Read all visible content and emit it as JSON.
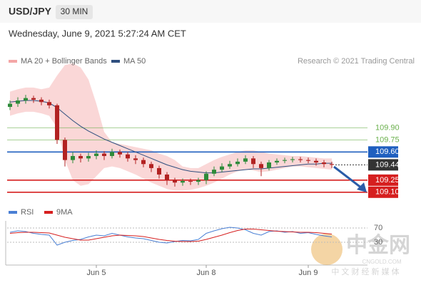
{
  "header": {
    "symbol": "USD/JPY",
    "timeframe": "30 MIN",
    "date": "Wednesday, June 9, 2021 5:27:24 AM CET",
    "credit": "Research © 2021 Trading Central"
  },
  "watermark": {
    "logo": "中金网",
    "site": "CNGOLD.COM",
    "slogan": "中 文 财 经 新 媒 体"
  },
  "chart_data": [
    {
      "type": "candlestick",
      "ylim": [
        108.93,
        110.78
      ],
      "up_color": "#2e8b3a",
      "down_color": "#b22222",
      "open": [
        110.16,
        110.2,
        110.24,
        110.27,
        110.25,
        110.22,
        110.18,
        109.75,
        109.5,
        109.55,
        109.52,
        109.55,
        109.58,
        109.55,
        109.6,
        109.57,
        109.52,
        109.5,
        109.45,
        109.4,
        109.32,
        109.25,
        109.22,
        109.24,
        109.23,
        109.25,
        109.33,
        109.38,
        109.42,
        109.45,
        109.48,
        109.52,
        109.45,
        109.4,
        109.47,
        109.49,
        109.5,
        109.51,
        109.5,
        109.49,
        109.47,
        109.45
      ],
      "high": [
        110.24,
        110.28,
        110.31,
        110.3,
        110.28,
        110.25,
        110.2,
        109.78,
        109.6,
        109.58,
        109.59,
        109.62,
        109.61,
        109.64,
        109.63,
        109.6,
        109.56,
        109.53,
        109.48,
        109.43,
        109.35,
        109.28,
        109.27,
        109.27,
        109.28,
        109.36,
        109.42,
        109.46,
        109.49,
        109.52,
        109.56,
        109.55,
        109.48,
        109.5,
        109.52,
        109.53,
        109.54,
        109.54,
        109.53,
        109.52,
        109.5,
        109.48
      ],
      "low": [
        110.12,
        110.16,
        110.2,
        110.21,
        110.18,
        110.14,
        109.7,
        109.42,
        109.46,
        109.47,
        109.48,
        109.51,
        109.5,
        109.52,
        109.53,
        109.48,
        109.45,
        109.41,
        109.35,
        109.27,
        109.19,
        109.17,
        109.18,
        109.19,
        109.19,
        109.2,
        109.3,
        109.35,
        109.39,
        109.42,
        109.45,
        109.4,
        109.3,
        109.37,
        109.44,
        109.46,
        109.47,
        109.47,
        109.46,
        109.43,
        109.41,
        109.4
      ],
      "close": [
        110.2,
        110.24,
        110.27,
        110.25,
        110.22,
        110.18,
        109.75,
        109.5,
        109.55,
        109.52,
        109.55,
        109.58,
        109.55,
        109.6,
        109.57,
        109.52,
        109.5,
        109.45,
        109.4,
        109.32,
        109.25,
        109.22,
        109.24,
        109.23,
        109.25,
        109.33,
        109.38,
        109.42,
        109.45,
        109.48,
        109.52,
        109.45,
        109.4,
        109.47,
        109.49,
        109.5,
        109.51,
        109.5,
        109.49,
        109.47,
        109.45,
        109.44
      ],
      "series": [
        {
          "name": "MA 20 + Bollinger Bands",
          "color": "#f4a6a6",
          "upper": [
            110.35,
            110.38,
            110.4,
            110.4,
            110.38,
            110.4,
            110.55,
            110.68,
            110.7,
            110.65,
            110.5,
            110.2,
            109.85,
            109.72,
            109.7,
            109.68,
            109.66,
            109.64,
            109.62,
            109.58,
            109.55,
            109.5,
            109.42,
            109.4,
            109.4,
            109.45,
            109.5,
            109.54,
            109.57,
            109.6,
            109.62,
            109.62,
            109.6,
            109.58,
            109.57,
            109.56,
            109.55,
            109.55,
            109.54,
            109.53,
            109.52,
            109.52
          ],
          "lower": [
            110.05,
            110.08,
            110.1,
            110.1,
            110.08,
            110.05,
            109.9,
            109.5,
            109.25,
            109.18,
            109.2,
            109.3,
            109.4,
            109.42,
            109.4,
            109.36,
            109.32,
            109.27,
            109.22,
            109.18,
            109.14,
            109.12,
            109.12,
            109.13,
            109.15,
            109.18,
            109.22,
            109.27,
            109.32,
            109.36,
            109.38,
            109.37,
            109.35,
            109.36,
            109.38,
            109.4,
            109.42,
            109.42,
            109.41,
            109.4,
            109.39,
            109.38
          ]
        },
        {
          "name": "MA 50",
          "color": "#2f4f7f",
          "values": [
            110.22,
            110.23,
            110.24,
            110.24,
            110.23,
            110.21,
            110.15,
            110.07,
            109.99,
            109.92,
            109.86,
            109.81,
            109.76,
            109.72,
            109.68,
            109.64,
            109.6,
            109.56,
            109.52,
            109.48,
            109.44,
            109.41,
            109.38,
            109.36,
            109.35,
            109.34,
            109.34,
            109.35,
            109.36,
            109.37,
            109.38,
            109.39,
            109.39,
            109.4,
            109.41,
            109.42,
            109.43,
            109.44,
            109.45,
            109.45,
            109.46,
            109.46
          ]
        }
      ],
      "levels": [
        {
          "value": 109.9,
          "label": "109.90",
          "color": "#6ab04c",
          "boxed": false
        },
        {
          "value": 109.75,
          "label": "109.75",
          "color": "#6ab04c",
          "boxed": false
        },
        {
          "value": 109.6,
          "label": "109.60",
          "color": "#1f5fbf",
          "boxed": true
        },
        {
          "value": 109.44,
          "label": "109.44",
          "color": "#333333",
          "boxed": true,
          "dotted": true
        },
        {
          "value": 109.25,
          "label": "109.25",
          "color": "#d61f1f",
          "boxed": true
        },
        {
          "value": 109.1,
          "label": "109.10",
          "color": "#d61f1f",
          "boxed": true
        }
      ]
    },
    {
      "type": "line",
      "ylim": [
        0,
        100
      ],
      "yticks": [
        70,
        30
      ],
      "categories": [
        null,
        null,
        null,
        null,
        null,
        null,
        null,
        null,
        null,
        null,
        null,
        "Jun 5",
        null,
        null,
        null,
        null,
        null,
        null,
        null,
        null,
        null,
        null,
        null,
        null,
        null,
        "Jun 8",
        null,
        null,
        null,
        null,
        null,
        null,
        null,
        null,
        null,
        null,
        null,
        null,
        "Jun 9",
        null,
        null,
        null
      ],
      "series": [
        {
          "name": "RSI",
          "color": "#4a7fd4",
          "values": [
            58,
            62,
            60,
            55,
            52,
            50,
            22,
            30,
            35,
            38,
            45,
            50,
            48,
            55,
            50,
            45,
            42,
            40,
            35,
            30,
            28,
            32,
            35,
            34,
            38,
            55,
            62,
            68,
            72,
            70,
            65,
            55,
            50,
            60,
            62,
            58,
            60,
            55,
            57,
            52,
            48,
            45
          ]
        },
        {
          "name": "9MA",
          "color": "#d61f1f",
          "values": [
            55,
            57,
            58,
            58,
            57,
            56,
            50,
            44,
            40,
            36,
            36,
            40,
            44,
            48,
            50,
            49,
            48,
            46,
            42,
            38,
            35,
            33,
            32,
            32,
            33,
            38,
            44,
            50,
            57,
            63,
            67,
            67,
            65,
            63,
            61,
            60,
            59,
            58,
            58,
            57,
            55,
            53
          ]
        }
      ]
    }
  ]
}
